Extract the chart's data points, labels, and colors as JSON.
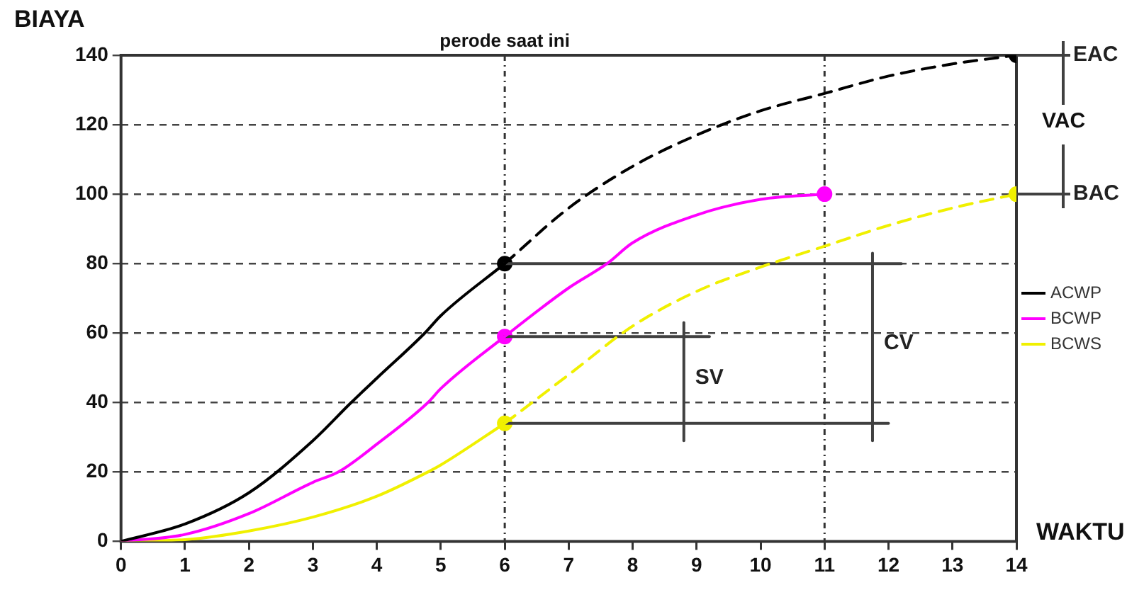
{
  "chart_data": {
    "type": "line",
    "xlabel": "WAKTU",
    "ylabel": "BIAYA",
    "xlim": [
      0,
      14
    ],
    "xticks": [
      0,
      1,
      2,
      3,
      4,
      5,
      6,
      7,
      8,
      9,
      10,
      11,
      12,
      13,
      14
    ],
    "ylim": [
      0,
      140
    ],
    "yticks": [
      0,
      20,
      40,
      60,
      80,
      100,
      120,
      140
    ],
    "grid": "y",
    "legend": "right",
    "marker": "none",
    "series": [
      {
        "name": "ACWP",
        "color": "#000000",
        "x": [
          0,
          1,
          2,
          3,
          3.6,
          4,
          4.75,
          5,
          6
        ],
        "values": [
          0,
          5,
          14,
          29,
          40,
          47,
          60,
          65,
          80
        ]
      },
      {
        "name": "BCWP",
        "color": "#ff00ff",
        "x": [
          0,
          1,
          2,
          3,
          3.4,
          4,
          4.8,
          5,
          6,
          7,
          7.6,
          8,
          9,
          10,
          11
        ],
        "values": [
          0,
          2,
          8,
          17,
          20,
          28,
          40,
          44,
          59,
          73,
          80,
          86,
          94,
          98.5,
          100
        ]
      },
      {
        "name": "BCWS",
        "color": "#f0f000",
        "x": [
          0,
          1,
          2,
          3,
          4,
          4.8,
          5,
          6
        ],
        "values": [
          0,
          0.5,
          3,
          7,
          13,
          20,
          22,
          34
        ]
      },
      {
        "color": "#000000",
        "line_style": "dashed",
        "x": [
          6,
          7,
          8,
          9,
          10,
          11,
          12,
          13,
          14
        ],
        "values": [
          80,
          96,
          108,
          117,
          124,
          129,
          134,
          137.5,
          140
        ]
      },
      {
        "color": "#f0f000",
        "line_style": "dashed",
        "x": [
          6,
          7,
          8,
          9,
          10,
          11,
          12,
          13,
          14
        ],
        "values": [
          34,
          48,
          62,
          72,
          79,
          85,
          91,
          96,
          100
        ]
      },
      {
        "color": "#404040",
        "x": [
          6,
          12.2
        ],
        "values": [
          80,
          80
        ]
      },
      {
        "color": "#404040",
        "x": [
          6,
          9.2
        ],
        "values": [
          59,
          59
        ]
      },
      {
        "color": "#404040",
        "x": [
          6,
          12
        ],
        "values": [
          34,
          34
        ]
      },
      {
        "color": "#404040",
        "x": [
          8.8,
          8.8
        ],
        "values": [
          29,
          63
        ]
      },
      {
        "color": "#404040",
        "x": [
          11.75,
          11.75
        ],
        "values": [
          29,
          83
        ]
      },
      {
        "type": "scatter",
        "marker": "circle",
        "x": [
          6,
          14,
          6,
          11,
          6,
          14
        ],
        "values": [
          80,
          140,
          59,
          100,
          34,
          100
        ],
        "colors": [
          "#000000",
          "#000000",
          "#ff00ff",
          "#ff00ff",
          "#f0f000",
          "#f0f000"
        ]
      }
    ],
    "ref_lines": [
      {
        "axis": "x",
        "value": 6,
        "label": "perode saat ini",
        "line_style": "dotted"
      },
      {
        "axis": "x",
        "value": 11,
        "line_style": "dotted"
      }
    ],
    "annotations": [
      {
        "text": "EAC",
        "x": 14,
        "y": 140
      },
      "VAC",
      {
        "text": "BAC",
        "x": 14,
        "y": 100
      },
      {
        "text": "SV",
        "x": 8.8,
        "y": 47
      },
      {
        "text": "CV",
        "x": 11.75,
        "y": 57
      }
    ]
  }
}
